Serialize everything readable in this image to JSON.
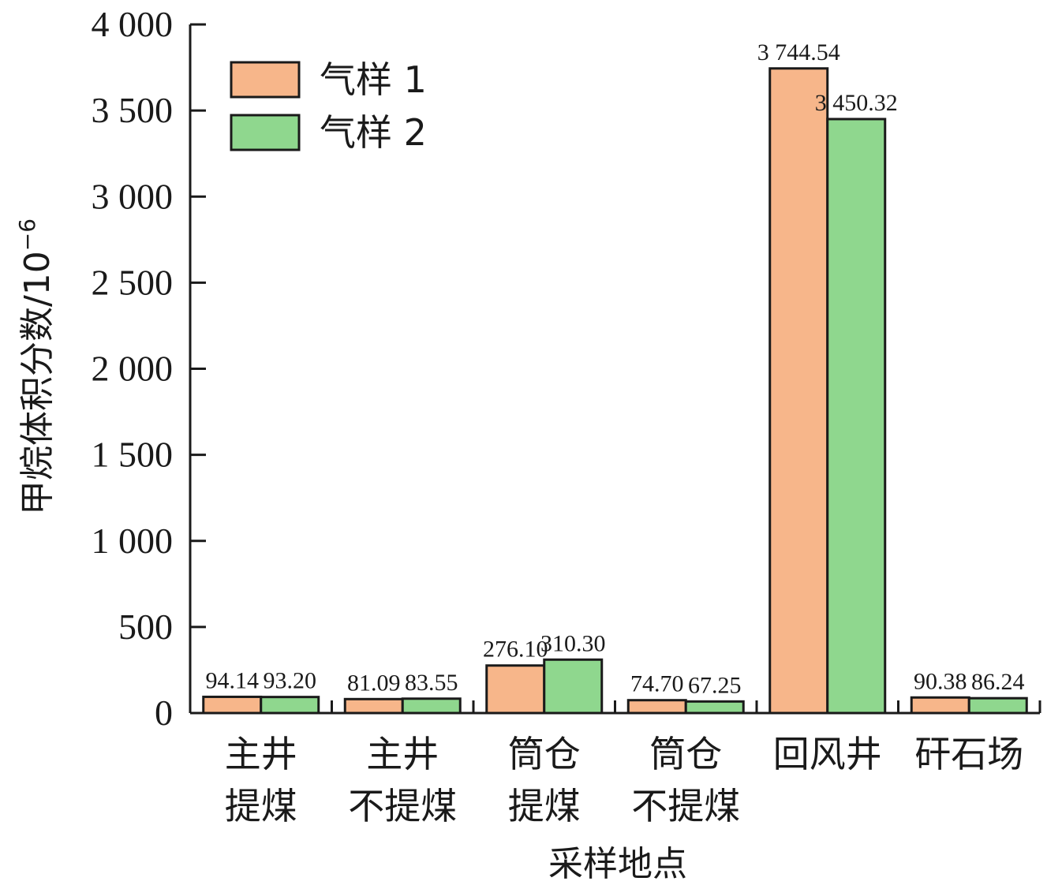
{
  "chart_data": {
    "type": "bar",
    "title": "",
    "xlabel": "采样地点",
    "ylabel": "甲烷体积分数/10",
    "ylabel_superscript": "−6",
    "ylim": [
      0,
      4000
    ],
    "yticks": [
      {
        "value": 0,
        "label": "0"
      },
      {
        "value": 500,
        "label": "500"
      },
      {
        "value": 1000,
        "label": "1 000"
      },
      {
        "value": 1500,
        "label": "1 500"
      },
      {
        "value": 2000,
        "label": "2 000"
      },
      {
        "value": 2500,
        "label": "2 500"
      },
      {
        "value": 3000,
        "label": "3 000"
      },
      {
        "value": 3500,
        "label": "3 500"
      },
      {
        "value": 4000,
        "label": "4 000"
      }
    ],
    "categories": [
      [
        "主井",
        "提煤"
      ],
      [
        "主井",
        "不提煤"
      ],
      [
        "筒仓",
        "提煤"
      ],
      [
        "筒仓",
        "不提煤"
      ],
      [
        "回风井"
      ],
      [
        "矸石场"
      ]
    ],
    "series": [
      {
        "name": "气样 1",
        "color": "#f7b68a",
        "values": [
          94.14,
          81.09,
          276.1,
          74.7,
          3744.54,
          90.38
        ],
        "labels": [
          "94.14",
          "81.09",
          "276.10",
          "74.70",
          "3 744.54",
          "90.38"
        ]
      },
      {
        "name": "气样 2",
        "color": "#8fd78e",
        "values": [
          93.2,
          83.55,
          310.3,
          67.25,
          3450.32,
          86.24
        ],
        "labels": [
          "93.20",
          "83.55",
          "310.30",
          "67.25",
          "3 450.32",
          "86.24"
        ]
      }
    ],
    "legend_position": "top-left",
    "grid": false
  }
}
